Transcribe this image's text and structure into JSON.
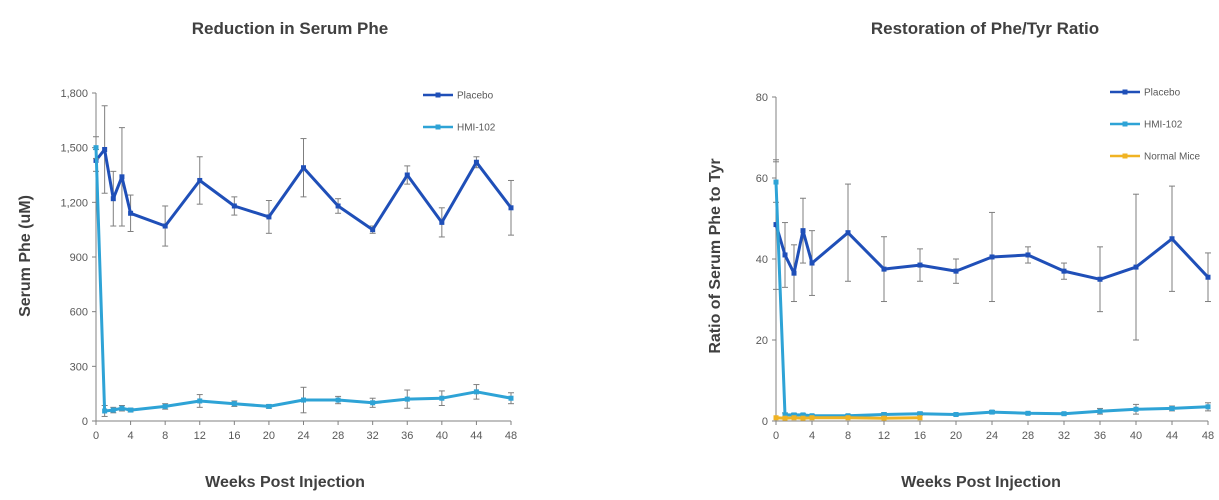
{
  "colors": {
    "placebo": "#1f4fb8",
    "hmi": "#2ea3d6",
    "normal": "#f0b323",
    "axis": "#808080",
    "errorbar": "#7f7f7f"
  },
  "chart_data": [
    {
      "type": "line",
      "title": "Reduction in Serum Phe",
      "xlabel": "Weeks Post Injection",
      "ylabel": "Serum Phe (uM)",
      "ylim": [
        0,
        1800
      ],
      "xlim": [
        0,
        48
      ],
      "xticks": [
        0,
        4,
        8,
        12,
        16,
        20,
        24,
        28,
        32,
        36,
        40,
        44,
        48
      ],
      "yticks": [
        0,
        300,
        600,
        900,
        1200,
        1500,
        1800
      ],
      "ytick_labels": [
        "0",
        "300",
        "600",
        "900",
        "1,200",
        "1,500",
        "1,800"
      ],
      "grid": false,
      "legend": "top-right",
      "series": [
        {
          "name": "Placebo",
          "color": "#1f4fb8",
          "x": [
            0,
            1,
            2,
            3,
            4,
            8,
            12,
            16,
            20,
            24,
            28,
            32,
            36,
            40,
            44,
            48
          ],
          "y": [
            1430,
            1490,
            1220,
            1340,
            1140,
            1070,
            1320,
            1180,
            1120,
            1390,
            1180,
            1050,
            1350,
            1090,
            1420,
            1170
          ],
          "err": [
            60,
            240,
            150,
            270,
            100,
            110,
            130,
            50,
            90,
            160,
            40,
            20,
            50,
            80,
            30,
            150
          ]
        },
        {
          "name": "HMI-102",
          "color": "#2ea3d6",
          "x": [
            0,
            1,
            2,
            3,
            4,
            8,
            12,
            16,
            20,
            24,
            28,
            32,
            36,
            40,
            44,
            48
          ],
          "y": [
            1500,
            55,
            60,
            70,
            60,
            80,
            110,
            95,
            80,
            115,
            115,
            100,
            120,
            125,
            160,
            125
          ],
          "err": [
            60,
            30,
            15,
            15,
            10,
            15,
            35,
            15,
            10,
            70,
            20,
            25,
            50,
            40,
            40,
            30
          ]
        }
      ]
    },
    {
      "type": "line",
      "title": "Restoration of Phe/Tyr Ratio",
      "xlabel": "Weeks Post Injection",
      "ylabel": "Ratio of Serum Phe to Tyr",
      "ylim": [
        0,
        80
      ],
      "xlim": [
        0,
        48
      ],
      "xticks": [
        0,
        4,
        8,
        12,
        16,
        20,
        24,
        28,
        32,
        36,
        40,
        44,
        48
      ],
      "yticks": [
        0,
        20,
        40,
        60,
        80
      ],
      "ytick_labels": [
        "0",
        "20",
        "40",
        "60",
        "80"
      ],
      "grid": false,
      "legend": "top-right",
      "series": [
        {
          "name": "Placebo",
          "color": "#1f4fb8",
          "x": [
            0,
            1,
            2,
            3,
            4,
            8,
            12,
            16,
            20,
            24,
            28,
            32,
            36,
            40,
            44,
            48
          ],
          "y": [
            48.5,
            41,
            36.5,
            47,
            39,
            46.5,
            37.5,
            38.5,
            37,
            40.5,
            41,
            37,
            35,
            38,
            45,
            35.5
          ],
          "err": [
            16,
            8,
            7,
            8,
            8,
            12,
            8,
            4,
            3,
            11,
            2,
            2,
            8,
            18,
            13,
            6
          ]
        },
        {
          "name": "HMI-102",
          "color": "#2ea3d6",
          "x": [
            0,
            1,
            2,
            3,
            4,
            8,
            12,
            16,
            20,
            24,
            28,
            32,
            36,
            40,
            44,
            48
          ],
          "y": [
            59,
            1.5,
            1.5,
            1.5,
            1.3,
            1.3,
            1.6,
            1.8,
            1.6,
            2.2,
            1.9,
            1.8,
            2.4,
            2.9,
            3.1,
            3.5
          ],
          "err": [
            5,
            0.5,
            0.4,
            0.3,
            0.3,
            0.3,
            0.4,
            0.4,
            0.3,
            0.4,
            0.3,
            0.3,
            0.7,
            1.2,
            0.6,
            1.0
          ]
        },
        {
          "name": "Normal Mice",
          "color": "#f0b323",
          "x": [
            0,
            1,
            2,
            3,
            4,
            8,
            12,
            16
          ],
          "y": [
            0.8,
            0.7,
            0.8,
            0.7,
            0.8,
            0.8,
            0.7,
            0.8
          ],
          "err": [
            0,
            0,
            0,
            0,
            0,
            0,
            0,
            0
          ]
        }
      ]
    }
  ]
}
